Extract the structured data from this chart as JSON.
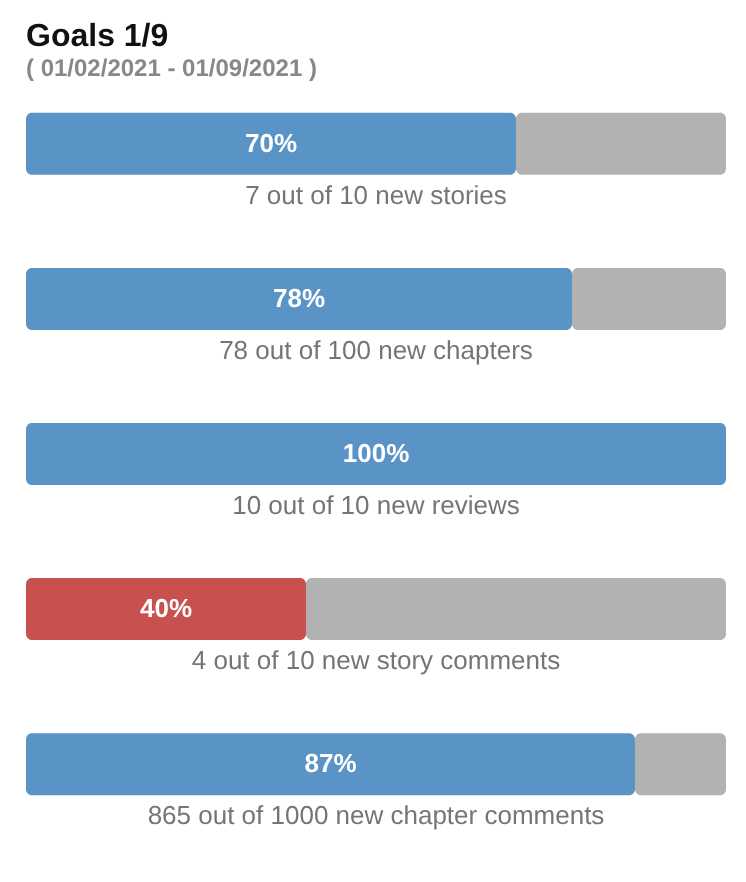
{
  "chart_data": {
    "type": "bar",
    "orientation": "horizontal",
    "stacked": true,
    "title": "Goals 1/9",
    "subtitle": "( 01/02/2021 - 01/09/2021 )",
    "categories": [
      "7 out of 10 new stories",
      "78 out of 100 new chapters",
      "10 out of 10 new reviews",
      "4 out of 10 new story comments",
      "865 out of 1000 new chapter comments"
    ],
    "series": [
      {
        "colors": [
          "#5a93c6",
          "#5a93c6",
          "#5a93c6",
          "#c85150",
          "#5a93c6"
        ],
        "values": [
          70,
          78,
          100,
          40,
          87
        ],
        "value_labels": [
          "70%",
          "78%",
          "100%",
          "40%",
          "87%"
        ]
      },
      {
        "color": "#b2b2b2",
        "values": [
          30,
          22,
          0,
          60,
          13
        ]
      }
    ],
    "xlim": [
      0,
      100
    ],
    "tick_labels": false
  }
}
